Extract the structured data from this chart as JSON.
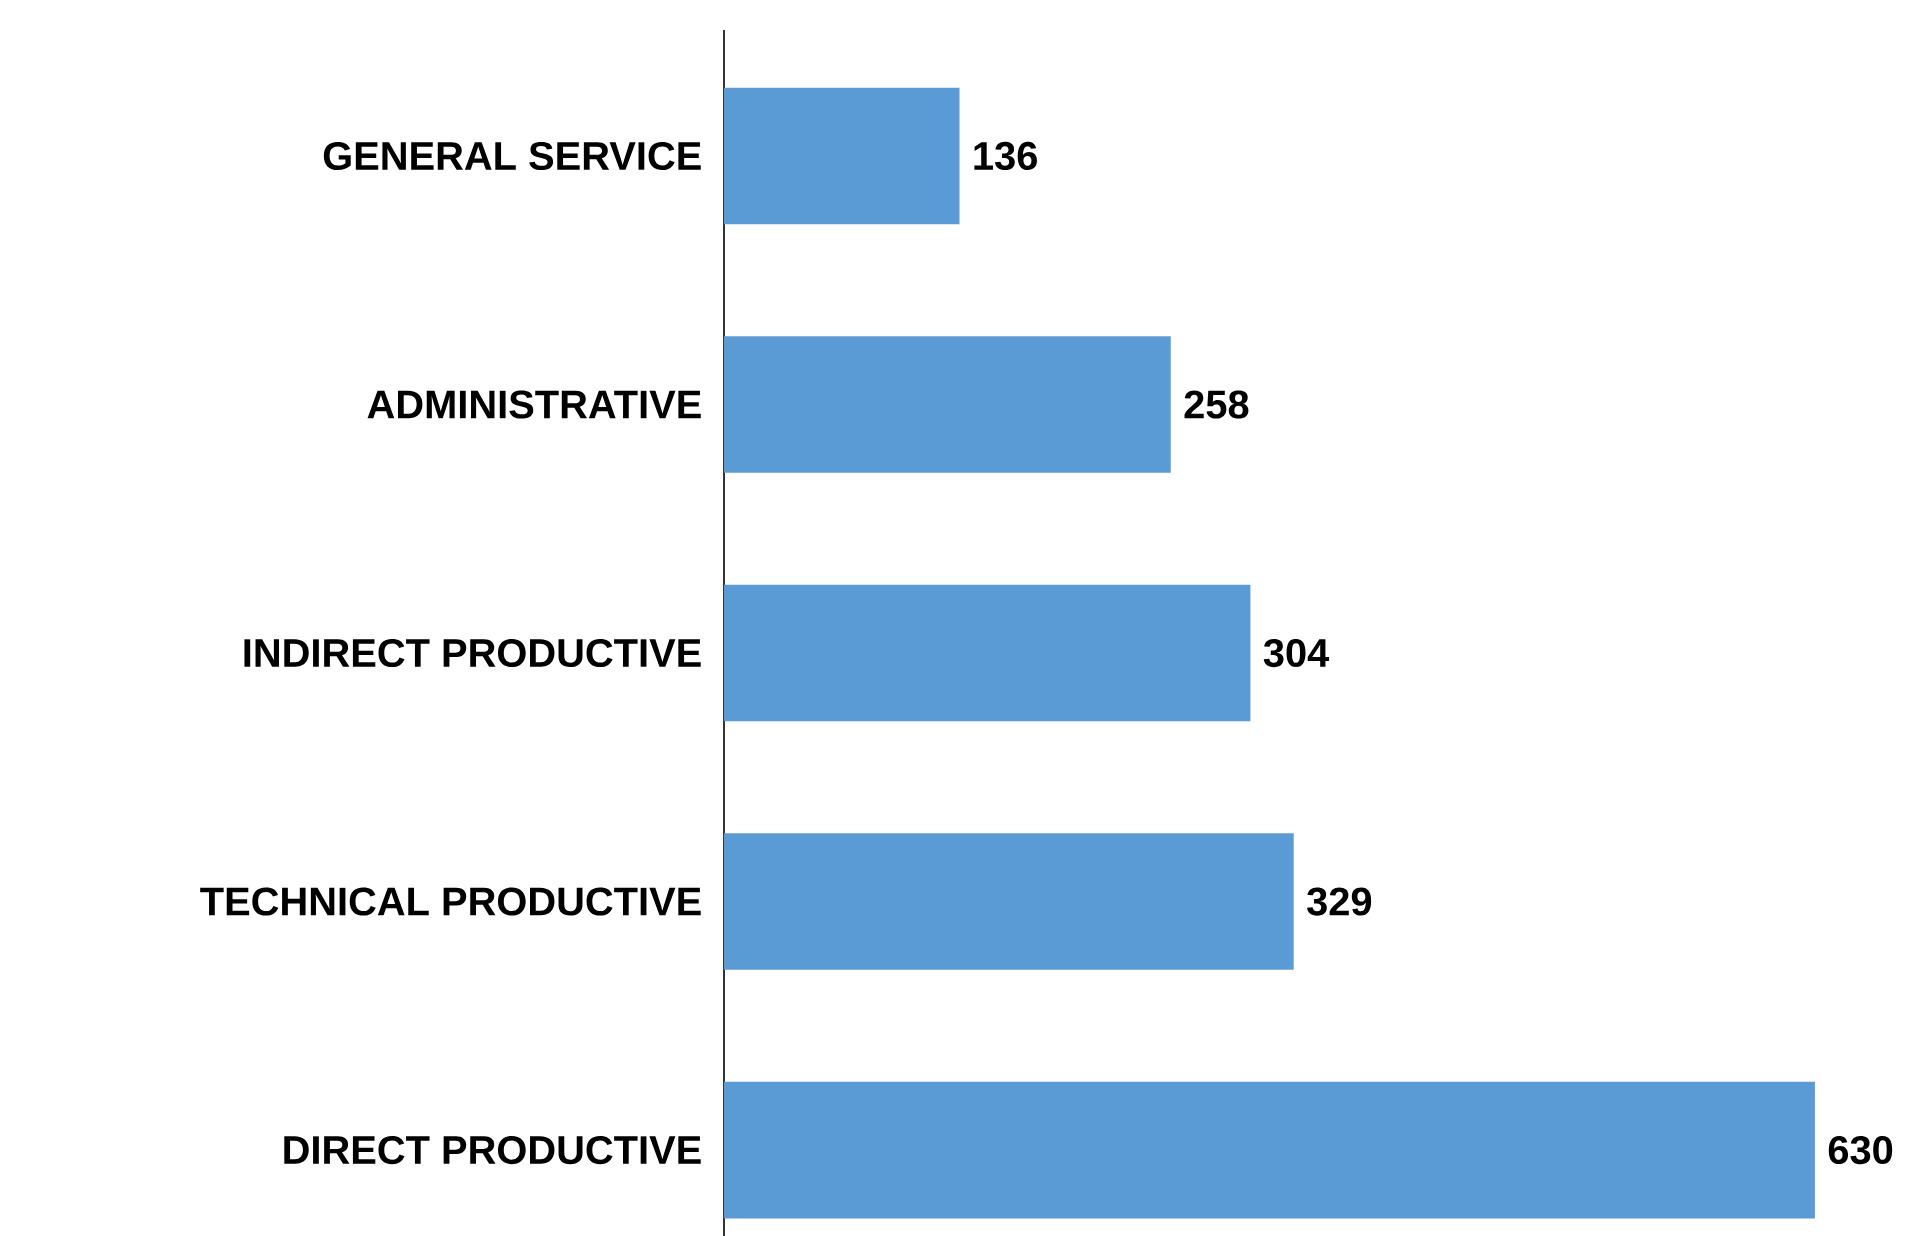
{
  "chart_data": {
    "type": "bar",
    "orientation": "horizontal",
    "categories": [
      "GENERAL SERVICE",
      "ADMINISTRATIVE",
      "INDIRECT PRODUCTIVE",
      "TECHNICAL PRODUCTIVE",
      "DIRECT PRODUCTIVE"
    ],
    "values": [
      136,
      258,
      304,
      329,
      630
    ],
    "color": "#5b9bd5",
    "data_labels": true
  }
}
